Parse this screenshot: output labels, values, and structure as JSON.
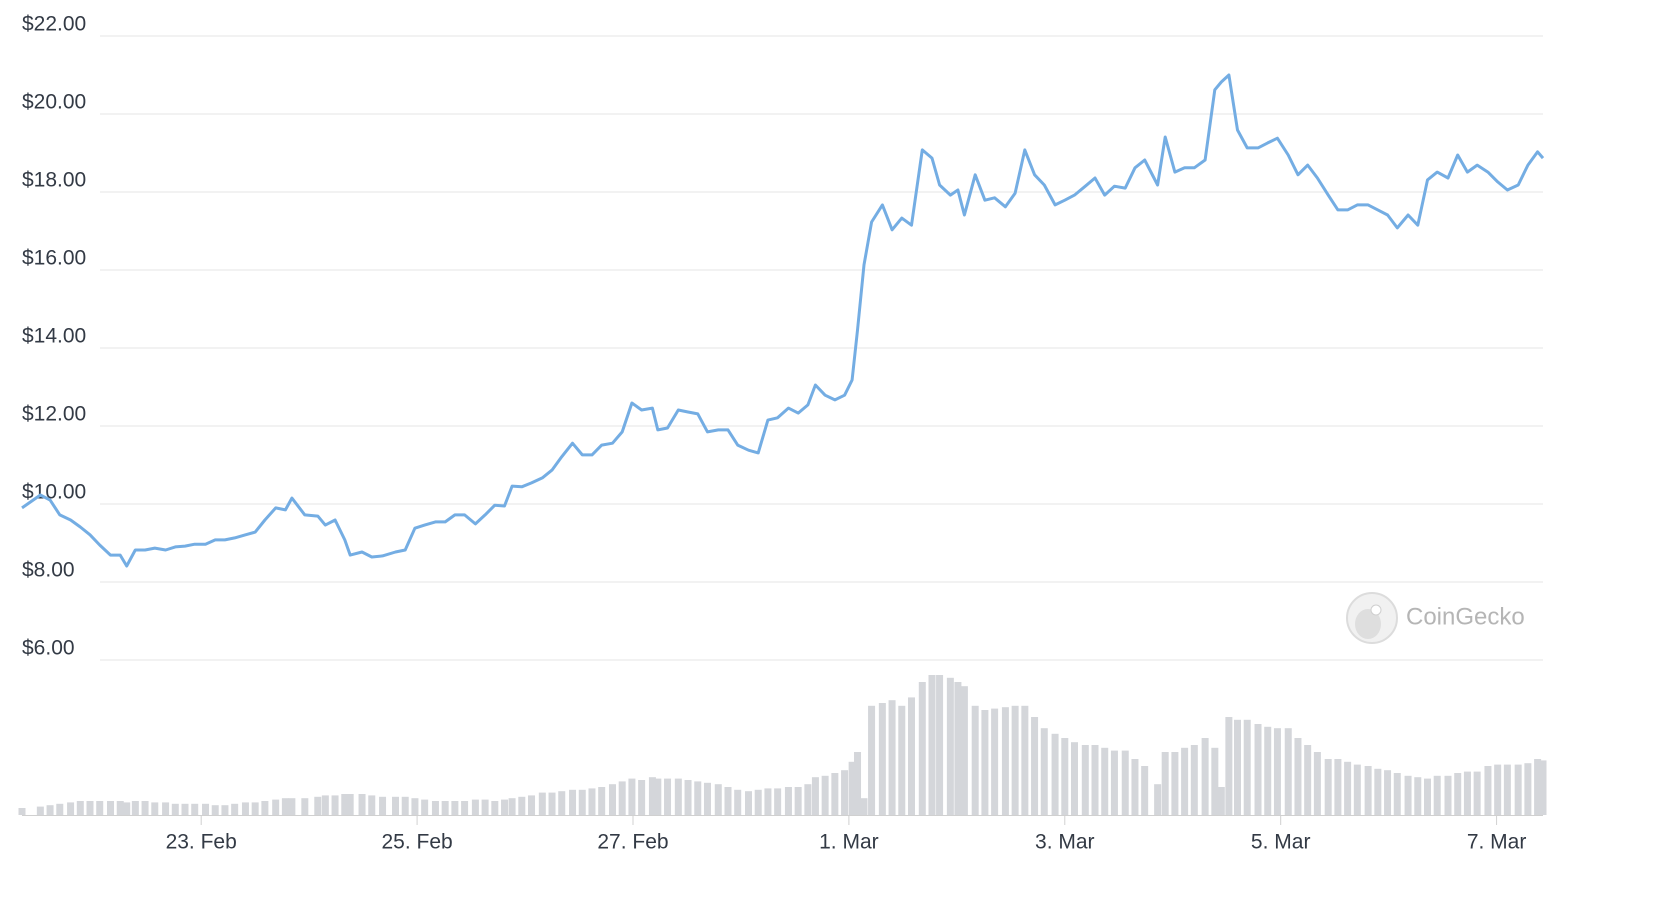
{
  "chart_data": {
    "type": "line",
    "watermark": "CoinGecko",
    "xlim": [
      21.34,
      35.43
    ],
    "xticks": [
      {
        "value": 23,
        "label": "23. Feb"
      },
      {
        "value": 25,
        "label": "25. Feb"
      },
      {
        "value": 27,
        "label": "27. Feb"
      },
      {
        "value": 29,
        "label": "1. Mar"
      },
      {
        "value": 31,
        "label": "3. Mar"
      },
      {
        "value": 33,
        "label": "5. Mar"
      },
      {
        "value": 35,
        "label": "7. Mar"
      }
    ],
    "ylim": [
      6,
      22
    ],
    "yticks": [
      {
        "value": 6,
        "label": "$6.00"
      },
      {
        "value": 8,
        "label": "$8.00"
      },
      {
        "value": 10,
        "label": "$10.00"
      },
      {
        "value": 12,
        "label": "$12.00"
      },
      {
        "value": 14,
        "label": "$14.00"
      },
      {
        "value": 16,
        "label": "$16.00"
      },
      {
        "value": 18,
        "label": "$18.00"
      },
      {
        "value": 20,
        "label": "$20.00"
      },
      {
        "value": 22,
        "label": "$22.00"
      }
    ],
    "y2lim": [
      0,
      100
    ],
    "grid": true,
    "x": [
      21.34,
      21.51,
      21.6,
      21.69,
      21.79,
      21.88,
      21.97,
      22.06,
      22.16,
      22.25,
      22.31,
      22.39,
      22.48,
      22.57,
      22.67,
      22.76,
      22.85,
      22.94,
      23.04,
      23.13,
      23.22,
      23.31,
      23.41,
      23.5,
      23.59,
      23.69,
      23.78,
      23.84,
      23.96,
      24.08,
      24.15,
      24.24,
      24.33,
      24.38,
      24.49,
      24.58,
      24.68,
      24.8,
      24.89,
      24.98,
      25.07,
      25.17,
      25.26,
      25.35,
      25.44,
      25.54,
      25.63,
      25.72,
      25.81,
      25.88,
      25.97,
      26.06,
      26.16,
      26.25,
      26.34,
      26.44,
      26.53,
      26.62,
      26.71,
      26.81,
      26.9,
      26.99,
      27.08,
      27.18,
      27.23,
      27.32,
      27.42,
      27.51,
      27.6,
      27.69,
      27.79,
      27.88,
      27.97,
      28.07,
      28.16,
      28.25,
      28.34,
      28.44,
      28.53,
      28.62,
      28.69,
      28.78,
      28.87,
      28.96,
      29.03,
      29.08,
      29.14,
      29.21,
      29.31,
      29.4,
      29.49,
      29.58,
      29.68,
      29.77,
      29.84,
      29.94,
      30.01,
      30.07,
      30.17,
      30.26,
      30.35,
      30.45,
      30.54,
      30.63,
      30.72,
      30.81,
      30.91,
      31.0,
      31.09,
      31.19,
      31.28,
      31.37,
      31.46,
      31.56,
      31.65,
      31.74,
      31.86,
      31.93,
      32.02,
      32.11,
      32.2,
      32.3,
      32.39,
      32.45,
      32.52,
      32.6,
      32.69,
      32.79,
      32.88,
      32.97,
      33.07,
      33.16,
      33.25,
      33.34,
      33.44,
      33.53,
      33.62,
      33.71,
      33.81,
      33.9,
      33.99,
      34.08,
      34.18,
      34.27,
      34.36,
      34.45,
      34.55,
      34.64,
      34.73,
      34.82,
      34.92,
      35.01,
      35.1,
      35.2,
      35.29,
      35.38,
      35.43
    ],
    "series": [
      {
        "color": "#74ade3",
        "values": [
          9.9,
          10.23,
          10.1,
          9.72,
          9.59,
          9.41,
          9.21,
          8.95,
          8.69,
          8.69,
          8.41,
          8.82,
          8.82,
          8.87,
          8.82,
          8.9,
          8.92,
          8.97,
          8.97,
          9.08,
          9.08,
          9.13,
          9.21,
          9.28,
          9.59,
          9.9,
          9.85,
          10.15,
          9.72,
          9.69,
          9.46,
          9.59,
          9.08,
          8.69,
          8.77,
          8.64,
          8.67,
          8.77,
          8.82,
          9.38,
          9.46,
          9.54,
          9.54,
          9.72,
          9.72,
          9.49,
          9.72,
          9.97,
          9.95,
          10.46,
          10.44,
          10.54,
          10.67,
          10.87,
          11.21,
          11.56,
          11.26,
          11.26,
          11.51,
          11.56,
          11.85,
          12.59,
          12.41,
          12.46,
          11.9,
          11.95,
          12.41,
          12.36,
          12.31,
          11.85,
          11.9,
          11.9,
          11.51,
          11.38,
          11.31,
          12.15,
          12.21,
          12.46,
          12.33,
          12.54,
          13.05,
          12.79,
          12.67,
          12.79,
          13.18,
          14.46,
          16.13,
          17.23,
          17.67,
          17.03,
          17.33,
          17.15,
          19.08,
          18.87,
          18.18,
          17.92,
          18.05,
          17.41,
          18.44,
          17.79,
          17.85,
          17.62,
          17.97,
          19.08,
          18.44,
          18.18,
          17.67,
          17.79,
          17.92,
          18.15,
          18.36,
          17.92,
          18.15,
          18.1,
          18.62,
          18.82,
          18.18,
          19.41,
          18.51,
          18.62,
          18.62,
          18.82,
          20.62,
          20.82,
          21.0,
          19.59,
          19.13,
          19.13,
          19.26,
          19.38,
          18.95,
          18.44,
          18.69,
          18.36,
          17.92,
          17.54,
          17.54,
          17.67,
          17.67,
          17.54,
          17.41,
          17.08,
          17.41,
          17.15,
          18.31,
          18.51,
          18.36,
          18.95,
          18.51,
          18.69,
          18.51,
          18.26,
          18.05,
          18.18,
          18.69,
          19.03,
          18.87
        ]
      },
      {
        "type": "bar",
        "axis": "y2",
        "color": "#d4d6da",
        "values": [
          5,
          6,
          7,
          8,
          9,
          10,
          10,
          10,
          10,
          10,
          9,
          10,
          10,
          9,
          9,
          8,
          8,
          8,
          8,
          7,
          7,
          8,
          9,
          9,
          10,
          11,
          12,
          12,
          12,
          13,
          14,
          14,
          15,
          15,
          15,
          14,
          13,
          13,
          13,
          12,
          11,
          10,
          10,
          10,
          10,
          11,
          11,
          10,
          11,
          12,
          13,
          14,
          16,
          16,
          17,
          18,
          18,
          19,
          20,
          22,
          24,
          26,
          25,
          27,
          26,
          26,
          26,
          25,
          24,
          23,
          22,
          20,
          18,
          17,
          18,
          19,
          19,
          20,
          20,
          22,
          27,
          28,
          30,
          32,
          38,
          45,
          12,
          78,
          80,
          82,
          78,
          84,
          95,
          100,
          100,
          98,
          95,
          92,
          78,
          75,
          76,
          77,
          78,
          78,
          70,
          62,
          58,
          55,
          52,
          50,
          50,
          48,
          46,
          46,
          40,
          35,
          22,
          45,
          45,
          48,
          50,
          55,
          48,
          20,
          70,
          68,
          68,
          65,
          63,
          62,
          62,
          55,
          50,
          45,
          40,
          40,
          38,
          36,
          35,
          33,
          32,
          30,
          28,
          27,
          26,
          28,
          28,
          30,
          31,
          31,
          35,
          36,
          36,
          36,
          37,
          40,
          39
        ]
      }
    ]
  }
}
